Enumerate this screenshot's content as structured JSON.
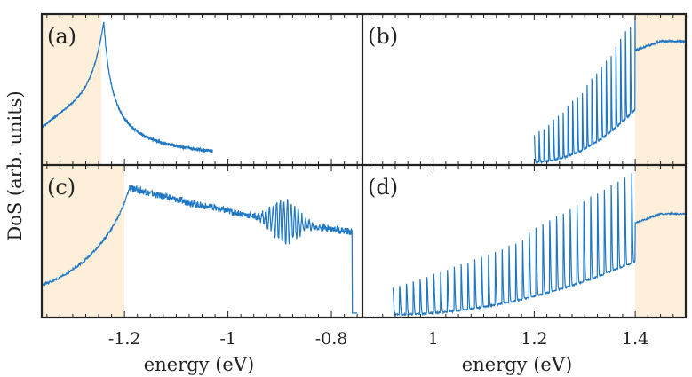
{
  "chart_data": {
    "type": "line",
    "ylabel": "DoS (arb. units)",
    "line_color": "#1f77c4",
    "band_color": "#fdefd9",
    "frame_color": "#222222",
    "panels": [
      {
        "id": "a",
        "label": "(a)",
        "row": 0,
        "col": 0,
        "xlim": [
          -1.36,
          -0.74
        ],
        "ylim": [
          0,
          1.0
        ],
        "shaded": [
          [
            -1.36,
            -1.245
          ]
        ],
        "curve": "vanhove",
        "start": -1.36,
        "end": -1.03,
        "peak": -1.24,
        "peak_height": 0.95
      },
      {
        "id": "b",
        "label": "(b)",
        "row": 0,
        "col": 1,
        "xlim": [
          0.86,
          1.5
        ],
        "ylim": [
          0,
          1.0
        ],
        "shaded": [
          [
            1.4,
            1.5
          ]
        ],
        "curve": "oscillating",
        "start": 1.2,
        "end": 1.5,
        "onset": 1.2,
        "edge": 1.4,
        "plateau": 0.82
      },
      {
        "id": "c",
        "label": "(c)",
        "row": 1,
        "col": 0,
        "xlim": [
          -1.36,
          -0.74
        ],
        "ylim": [
          0,
          1.0
        ],
        "shaded": [
          [
            -1.36,
            -1.2
          ]
        ],
        "curve": "vanhove_broad",
        "start": -1.36,
        "end": -0.75,
        "peak": -1.19,
        "peak_height": 0.85,
        "wiggle_center": -0.89
      },
      {
        "id": "d",
        "label": "(d)",
        "row": 1,
        "col": 1,
        "xlim": [
          0.86,
          1.5
        ],
        "ylim": [
          0,
          1.0
        ],
        "shaded": [
          [
            1.4,
            1.5
          ]
        ],
        "curve": "oscillating",
        "start": 0.92,
        "end": 1.5,
        "onset": 0.92,
        "edge": 1.4,
        "plateau": 0.68
      }
    ],
    "x_axes": [
      {
        "col": 0,
        "xlabel": "energy (eV)",
        "ticks": [
          -1.2,
          -1,
          -0.8
        ],
        "tick_labels": [
          "-1.2",
          "-1",
          "-0.8"
        ]
      },
      {
        "col": 1,
        "xlabel": "energy (eV)",
        "ticks": [
          1,
          1.2,
          1.4
        ],
        "tick_labels": [
          "1",
          "1.2",
          "1.4"
        ]
      }
    ]
  }
}
